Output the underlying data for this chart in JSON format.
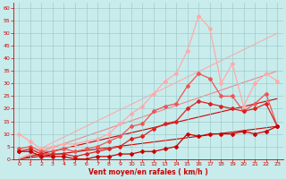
{
  "background_color": "#c8ecec",
  "grid_color": "#a0cccc",
  "xlabel": "Vent moyen/en rafales ( km/h )",
  "xlabel_color": "#cc0000",
  "tick_color": "#cc0000",
  "xlim": [
    -0.5,
    23.5
  ],
  "ylim": [
    0,
    62
  ],
  "yticks": [
    0,
    5,
    10,
    15,
    20,
    25,
    30,
    35,
    40,
    45,
    50,
    55,
    60
  ],
  "xticks": [
    0,
    1,
    2,
    3,
    4,
    5,
    6,
    7,
    8,
    9,
    10,
    11,
    12,
    13,
    14,
    15,
    16,
    17,
    18,
    19,
    20,
    21,
    22,
    23
  ],
  "line_s1": {
    "x": [
      0,
      23
    ],
    "y": [
      0,
      13
    ],
    "color": "#cc0000",
    "linewidth": 0.8,
    "zorder": 1
  },
  "line_s2": {
    "x": [
      0,
      23
    ],
    "y": [
      0,
      24
    ],
    "color": "#cc0000",
    "linewidth": 0.8,
    "zorder": 1
  },
  "line_s3": {
    "x": [
      0,
      23
    ],
    "y": [
      0,
      35
    ],
    "color": "#ee8888",
    "linewidth": 0.8,
    "zorder": 1
  },
  "line_s4": {
    "x": [
      0,
      23
    ],
    "y": [
      0,
      50
    ],
    "color": "#ffaaaa",
    "linewidth": 0.8,
    "zorder": 1
  },
  "line1": {
    "x": [
      0,
      1,
      2,
      3,
      4,
      5,
      6,
      7,
      8,
      9,
      10,
      11,
      12,
      13,
      14,
      15,
      16,
      17,
      18,
      19,
      20,
      21,
      22,
      23
    ],
    "y": [
      3,
      3,
      1,
      1,
      1,
      0,
      0,
      1,
      1,
      2,
      2,
      3,
      3,
      4,
      5,
      10,
      9,
      10,
      10,
      10,
      11,
      10,
      11,
      13
    ],
    "color": "#cc0000",
    "linewidth": 0.9,
    "marker": "D",
    "markersize": 2.0,
    "zorder": 4
  },
  "line2": {
    "x": [
      0,
      1,
      2,
      3,
      4,
      5,
      6,
      7,
      8,
      9,
      10,
      11,
      12,
      13,
      14,
      15,
      16,
      17,
      18,
      19,
      20,
      21,
      22,
      23
    ],
    "y": [
      3,
      4,
      2,
      2,
      2,
      1,
      2,
      3,
      4,
      5,
      8,
      9,
      12,
      14,
      15,
      20,
      23,
      22,
      21,
      20,
      19,
      20,
      22,
      13
    ],
    "color": "#dd2222",
    "linewidth": 0.9,
    "marker": "D",
    "markersize": 2.0,
    "zorder": 4
  },
  "line3": {
    "x": [
      0,
      1,
      2,
      3,
      4,
      5,
      6,
      7,
      8,
      9,
      10,
      11,
      12,
      13,
      14,
      15,
      16,
      17,
      18,
      19,
      20,
      21,
      22,
      23
    ],
    "y": [
      4,
      5,
      3,
      3,
      4,
      3,
      4,
      5,
      7,
      9,
      13,
      14,
      19,
      21,
      22,
      29,
      34,
      32,
      25,
      25,
      19,
      22,
      26,
      13
    ],
    "color": "#ee5555",
    "linewidth": 0.9,
    "marker": "D",
    "markersize": 2.0,
    "zorder": 3
  },
  "line4": {
    "x": [
      0,
      1,
      2,
      3,
      4,
      5,
      6,
      7,
      8,
      9,
      10,
      11,
      12,
      13,
      14,
      15,
      16,
      17,
      18,
      19,
      20,
      21,
      22,
      23
    ],
    "y": [
      10,
      7,
      4,
      5,
      6,
      6,
      7,
      8,
      10,
      14,
      18,
      21,
      26,
      31,
      34,
      43,
      57,
      52,
      30,
      38,
      21,
      30,
      34,
      31
    ],
    "color": "#ffaaaa",
    "linewidth": 0.9,
    "marker": "D",
    "markersize": 2.0,
    "zorder": 2
  }
}
